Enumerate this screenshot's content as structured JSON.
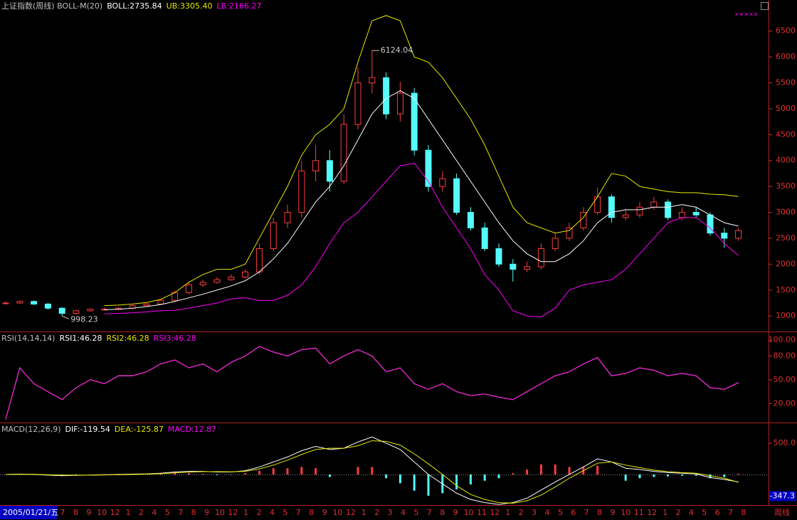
{
  "chart_data": [
    {
      "type": "candlestick",
      "title": "上证指数(周线) BOLL-M(20)",
      "up_color": "#ff3c3c",
      "down_color": "#54fcfc",
      "open": [
        1240,
        1250,
        1280,
        1230,
        1150,
        1050,
        1100,
        1130,
        1130,
        1150,
        1200,
        1230,
        1300,
        1450,
        1600,
        1650,
        1700,
        1750,
        1850,
        2300,
        2800,
        3000,
        3800,
        4000,
        3600,
        4700,
        5500,
        5600,
        4900,
        5300,
        4200,
        3500,
        3650,
        3000,
        2700,
        2300,
        2000,
        1900,
        1950,
        2300,
        2500,
        2700,
        3000,
        3300,
        2900,
        2950,
        3100,
        3200,
        2900,
        3000,
        2950,
        2600,
        2500
      ],
      "high": [
        1280,
        1300,
        1300,
        1250,
        1170,
        1120,
        1150,
        1160,
        1170,
        1220,
        1250,
        1330,
        1490,
        1640,
        1700,
        1750,
        1800,
        1900,
        2400,
        2900,
        3150,
        4000,
        4300,
        4200,
        4900,
        5800,
        6124.04,
        5700,
        5520,
        5400,
        4300,
        3800,
        3750,
        3100,
        2800,
        2400,
        2100,
        2050,
        2400,
        2600,
        2800,
        3100,
        3478,
        3350,
        3050,
        3200,
        3300,
        3250,
        3100,
        3100,
        3000,
        2700,
        2700
      ],
      "low": [
        1220,
        1230,
        1210,
        1120,
        998.23,
        1030,
        1080,
        1100,
        1110,
        1130,
        1180,
        1210,
        1280,
        1420,
        1560,
        1620,
        1680,
        1720,
        1800,
        2250,
        2700,
        2900,
        3600,
        3400,
        3550,
        4600,
        5300,
        4800,
        4750,
        4100,
        3400,
        3400,
        2950,
        2650,
        2250,
        1950,
        1664,
        1850,
        1900,
        2250,
        2450,
        2650,
        2950,
        2800,
        2850,
        2900,
        3050,
        2850,
        2850,
        2900,
        2550,
        2319,
        2450
      ],
      "close": [
        1250,
        1280,
        1230,
        1150,
        1050,
        1100,
        1130,
        1130,
        1150,
        1200,
        1230,
        1300,
        1450,
        1600,
        1650,
        1700,
        1750,
        1850,
        2300,
        2800,
        3000,
        3800,
        4000,
        3600,
        4700,
        5500,
        5600,
        4900,
        5300,
        4200,
        3500,
        3650,
        3000,
        2700,
        2300,
        2000,
        1900,
        1950,
        2300,
        2500,
        2700,
        3000,
        3300,
        2900,
        2950,
        3100,
        3200,
        2900,
        3000,
        2950,
        2600,
        2500,
        2650
      ],
      "series": [
        {
          "name": "BOLL:2735.84",
          "color": "#ffffff",
          "values": [
            null,
            null,
            null,
            null,
            null,
            null,
            null,
            1120,
            1130,
            1150,
            1180,
            1220,
            1280,
            1350,
            1420,
            1500,
            1580,
            1680,
            1850,
            2100,
            2400,
            2800,
            3200,
            3500,
            3900,
            4400,
            4900,
            5200,
            5350,
            5200,
            4800,
            4400,
            4000,
            3600,
            3200,
            2800,
            2450,
            2200,
            2050,
            2050,
            2200,
            2450,
            2800,
            3000,
            3050,
            3050,
            3100,
            3100,
            3150,
            3100,
            2950,
            2800,
            2735.84
          ]
        },
        {
          "name": "UB:3305.40",
          "color": "#e8e800",
          "values": [
            null,
            null,
            null,
            null,
            null,
            null,
            null,
            1200,
            1210,
            1230,
            1260,
            1320,
            1450,
            1650,
            1800,
            1900,
            1900,
            2000,
            2500,
            3000,
            3500,
            4100,
            4500,
            4700,
            5000,
            5900,
            6700,
            6800,
            6700,
            6000,
            5900,
            5600,
            5200,
            4800,
            4300,
            3700,
            3100,
            2800,
            2700,
            2600,
            2650,
            2900,
            3300,
            3750,
            3700,
            3500,
            3450,
            3400,
            3380,
            3380,
            3350,
            3340,
            3305.4
          ]
        },
        {
          "name": "LB:2166.27",
          "color": "#ff00ff",
          "values": [
            null,
            null,
            null,
            null,
            null,
            null,
            null,
            1040,
            1050,
            1060,
            1080,
            1100,
            1110,
            1150,
            1200,
            1250,
            1330,
            1350,
            1300,
            1300,
            1400,
            1600,
            1950,
            2400,
            2800,
            3000,
            3300,
            3600,
            3900,
            3950,
            3600,
            3100,
            2700,
            2300,
            1800,
            1500,
            1100,
            1000,
            980,
            1150,
            1500,
            1600,
            1650,
            1700,
            1900,
            2200,
            2500,
            2800,
            2900,
            2900,
            2700,
            2400,
            2166.27
          ]
        }
      ],
      "ylim": [
        700,
        7100
      ],
      "yticks": [
        1000,
        1500,
        2000,
        2500,
        3000,
        3500,
        4000,
        4500,
        5000,
        5500,
        6000,
        6500
      ]
    },
    {
      "type": "line",
      "title": "RSI(14,14,14)",
      "series": [
        {
          "name": "RSI1:46.28",
          "color": "#ffffff",
          "values": [
            0,
            65,
            45,
            35,
            25,
            40,
            50,
            45,
            55,
            55,
            60,
            70,
            75,
            65,
            70,
            60,
            72,
            80,
            92,
            85,
            80,
            88,
            90,
            70,
            80,
            88,
            80,
            60,
            65,
            45,
            38,
            45,
            35,
            30,
            32,
            28,
            25,
            35,
            45,
            55,
            60,
            70,
            78,
            55,
            58,
            65,
            62,
            55,
            58,
            55,
            40,
            38,
            46.28
          ]
        },
        {
          "name": "RSI2:46.28",
          "color": "#e8e800",
          "values": [
            0,
            65,
            45,
            35,
            25,
            40,
            50,
            45,
            55,
            55,
            60,
            70,
            75,
            65,
            70,
            60,
            72,
            80,
            92,
            85,
            80,
            88,
            90,
            70,
            80,
            88,
            80,
            60,
            65,
            45,
            38,
            45,
            35,
            30,
            32,
            28,
            25,
            35,
            45,
            55,
            60,
            70,
            78,
            55,
            58,
            65,
            62,
            55,
            58,
            55,
            40,
            38,
            46.28
          ]
        },
        {
          "name": "RSI3:46.28",
          "color": "#ff00ff",
          "values": [
            0,
            65,
            45,
            35,
            25,
            40,
            50,
            45,
            55,
            55,
            60,
            70,
            75,
            65,
            70,
            60,
            72,
            80,
            92,
            85,
            80,
            88,
            90,
            70,
            80,
            88,
            80,
            60,
            65,
            45,
            38,
            45,
            35,
            30,
            32,
            28,
            25,
            35,
            45,
            55,
            60,
            70,
            78,
            55,
            58,
            65,
            62,
            55,
            58,
            55,
            40,
            38,
            46.28
          ]
        }
      ],
      "ylim": [
        -4,
        110
      ],
      "yticks": [
        {
          "value": 20,
          "label": "20.00"
        },
        {
          "value": 50,
          "label": "50.00"
        },
        {
          "value": 80,
          "label": "80.00"
        },
        {
          "value": 100,
          "label": "100.00"
        }
      ]
    },
    {
      "type": "macd",
      "title": "MACD(12,26,9)",
      "series": [
        {
          "name": "DIF:-119.54",
          "color": "#ffffff",
          "values": [
            0,
            5,
            0,
            -10,
            -20,
            -15,
            -10,
            -5,
            0,
            5,
            10,
            20,
            40,
            50,
            50,
            40,
            40,
            60,
            120,
            200,
            280,
            380,
            450,
            400,
            420,
            520,
            600,
            500,
            400,
            200,
            0,
            -150,
            -300,
            -400,
            -450,
            -480,
            -450,
            -380,
            -250,
            -120,
            0,
            120,
            250,
            200,
            100,
            80,
            50,
            30,
            20,
            10,
            -50,
            -80,
            -119.54
          ]
        },
        {
          "name": "DEA:-125.87",
          "color": "#e8e800",
          "values": [
            0,
            3,
            2,
            -4,
            -10,
            -12,
            -11,
            -8,
            -5,
            0,
            5,
            12,
            25,
            38,
            45,
            45,
            42,
            50,
            90,
            150,
            230,
            320,
            400,
            420,
            420,
            460,
            540,
            530,
            470,
            330,
            170,
            0,
            -180,
            -320,
            -400,
            -450,
            -460,
            -420,
            -330,
            -200,
            -60,
            60,
            180,
            200,
            150,
            110,
            70,
            45,
            30,
            20,
            -20,
            -60,
            -125.87
          ]
        },
        {
          "name": "MACD:12.87",
          "color": "#ff00ff",
          "values": [
            0,
            4,
            -4,
            -12,
            -20,
            -6,
            2,
            6,
            10,
            10,
            10,
            16,
            30,
            24,
            10,
            -10,
            -4,
            20,
            60,
            100,
            100,
            120,
            100,
            -40,
            0,
            120,
            120,
            -60,
            -140,
            -260,
            -340,
            -300,
            -240,
            -160,
            -100,
            -60,
            20,
            80,
            160,
            160,
            120,
            120,
            140,
            0,
            -100,
            -60,
            -40,
            -30,
            -20,
            -20,
            -60,
            -40,
            12.87
          ]
        }
      ],
      "up_color": "#ff3c3c",
      "down_color": "#54fcfc",
      "current_value": -347.3,
      "ylim": [
        -490,
        820
      ],
      "yticks": [
        {
          "value": 500,
          "label": "500.0"
        }
      ]
    }
  ],
  "x_axis": {
    "date_label": "2005/01/21/五",
    "period_label": "周线",
    "labels": [
      "7",
      "8",
      "9",
      "10",
      "12",
      "1",
      "2",
      "4",
      "5",
      "7",
      "8",
      "9",
      "10",
      "12",
      "1",
      "2",
      "4",
      "5",
      "7",
      "8",
      "9",
      "10",
      "12",
      "1",
      "2",
      "3",
      "4",
      "5",
      "7",
      "8",
      "9",
      "10",
      "11",
      "12",
      "1",
      "2",
      "3",
      "4",
      "5",
      "6",
      "7",
      "8",
      "9",
      "10",
      "11",
      "12",
      "1",
      "2",
      "4",
      "5",
      "6",
      "7",
      "8"
    ]
  },
  "corner_mark": "×××××"
}
